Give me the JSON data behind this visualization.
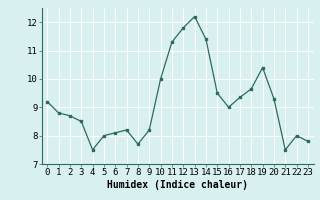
{
  "x": [
    0,
    1,
    2,
    3,
    4,
    5,
    6,
    7,
    8,
    9,
    10,
    11,
    12,
    13,
    14,
    15,
    16,
    17,
    18,
    19,
    20,
    21,
    22,
    23
  ],
  "y": [
    9.2,
    8.8,
    8.7,
    8.5,
    7.5,
    8.0,
    8.1,
    8.2,
    7.7,
    8.2,
    10.0,
    11.3,
    11.8,
    12.2,
    11.4,
    9.5,
    9.0,
    9.35,
    9.65,
    10.4,
    9.3,
    7.5,
    8.0,
    7.8
  ],
  "line_color": "#2d6b5e",
  "bg_color": "#d9f0f0",
  "grid_color": "#ffffff",
  "xlabel": "Humidex (Indice chaleur)",
  "ylim": [
    7,
    12.5
  ],
  "xlim": [
    -0.5,
    23.5
  ],
  "yticks": [
    7,
    8,
    9,
    10,
    11,
    12
  ],
  "xticks": [
    0,
    1,
    2,
    3,
    4,
    5,
    6,
    7,
    8,
    9,
    10,
    11,
    12,
    13,
    14,
    15,
    16,
    17,
    18,
    19,
    20,
    21,
    22,
    23
  ],
  "xlabel_fontsize": 7,
  "tick_fontsize": 6.5,
  "marker_size": 2.0,
  "line_width": 0.9
}
